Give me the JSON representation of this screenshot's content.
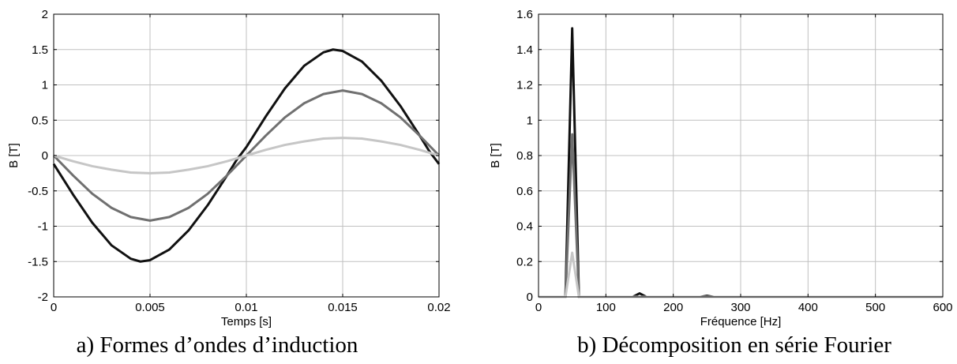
{
  "captions": {
    "a": "a) Formes d’ondes d’induction",
    "b": "b) Décomposition en série Fourier"
  },
  "colors": {
    "black": "#111111",
    "dark_gray": "#707070",
    "light_gray": "#c6c6c6",
    "grid": "#c0c0c0",
    "axis": "#000000"
  },
  "chart_data": [
    {
      "id": "a",
      "type": "line",
      "title": "",
      "xlabel": "Temps [s]",
      "ylabel": "B [T]",
      "xlim": [
        0,
        0.02
      ],
      "ylim": [
        -2,
        2
      ],
      "xticks": [
        0,
        0.005,
        0.01,
        0.015,
        0.02
      ],
      "xtick_labels": [
        "0",
        "0.005",
        "0.01",
        "0.015",
        "0.02"
      ],
      "yticks": [
        -2,
        -1.5,
        -1,
        -0.5,
        0,
        0.5,
        1,
        1.5,
        2
      ],
      "ytick_labels": [
        "-2",
        "-1.5",
        "-1",
        "-0.5",
        "0",
        "0.5",
        "1",
        "1.5",
        "2"
      ],
      "grid": true,
      "series": [
        {
          "color": "#111111",
          "x": [
            0,
            0.001,
            0.002,
            0.003,
            0.004,
            0.0045,
            0.005,
            0.006,
            0.007,
            0.008,
            0.009,
            0.0095,
            0.01,
            0.011,
            0.012,
            0.013,
            0.014,
            0.0145,
            0.015,
            0.016,
            0.017,
            0.018,
            0.019,
            0.0195,
            0.02
          ],
          "y": [
            -0.12,
            -0.55,
            -0.95,
            -1.27,
            -1.46,
            -1.5,
            -1.48,
            -1.33,
            -1.06,
            -0.7,
            -0.28,
            -0.06,
            0.12,
            0.55,
            0.95,
            1.27,
            1.46,
            1.5,
            1.48,
            1.33,
            1.06,
            0.7,
            0.28,
            0.06,
            -0.12
          ]
        },
        {
          "color": "#707070",
          "x": [
            0,
            0.001,
            0.002,
            0.003,
            0.004,
            0.005,
            0.006,
            0.007,
            0.008,
            0.009,
            0.01,
            0.011,
            0.012,
            0.013,
            0.014,
            0.015,
            0.016,
            0.017,
            0.018,
            0.019,
            0.02
          ],
          "y": [
            0,
            -0.28,
            -0.54,
            -0.74,
            -0.87,
            -0.92,
            -0.87,
            -0.74,
            -0.54,
            -0.28,
            0,
            0.28,
            0.54,
            0.74,
            0.87,
            0.92,
            0.87,
            0.74,
            0.54,
            0.28,
            0
          ]
        },
        {
          "color": "#c6c6c6",
          "x": [
            0,
            0.001,
            0.002,
            0.003,
            0.004,
            0.005,
            0.006,
            0.007,
            0.008,
            0.009,
            0.01,
            0.011,
            0.012,
            0.013,
            0.014,
            0.015,
            0.016,
            0.017,
            0.018,
            0.019,
            0.02
          ],
          "y": [
            0,
            -0.08,
            -0.15,
            -0.2,
            -0.24,
            -0.25,
            -0.24,
            -0.2,
            -0.15,
            -0.08,
            0,
            0.08,
            0.15,
            0.2,
            0.24,
            0.25,
            0.24,
            0.2,
            0.15,
            0.08,
            0
          ]
        }
      ]
    },
    {
      "id": "b",
      "type": "line",
      "title": "",
      "xlabel": "Fréquence [Hz]",
      "ylabel": "B [T]",
      "xlim": [
        0,
        600
      ],
      "ylim": [
        0,
        1.6
      ],
      "xticks": [
        0,
        100,
        200,
        300,
        400,
        500,
        600
      ],
      "xtick_labels": [
        "0",
        "100",
        "200",
        "300",
        "400",
        "500",
        "600"
      ],
      "yticks": [
        0,
        0.2,
        0.4,
        0.6,
        0.8,
        1.0,
        1.2,
        1.4,
        1.6
      ],
      "ytick_labels": [
        "0",
        "0.2",
        "0.4",
        "0.6",
        "0.8",
        "1",
        "1.2",
        "1.4",
        "1.6"
      ],
      "grid": true,
      "series": [
        {
          "color": "#111111",
          "x": [
            0,
            40,
            50,
            60,
            140,
            150,
            160,
            240,
            250,
            260,
            600
          ],
          "y": [
            0,
            0,
            1.52,
            0,
            0,
            0.02,
            0,
            0,
            0.006,
            0,
            0
          ]
        },
        {
          "color": "#707070",
          "x": [
            0,
            40,
            50,
            60,
            600
          ],
          "y": [
            0,
            0,
            0.92,
            0,
            0
          ]
        },
        {
          "color": "#c6c6c6",
          "x": [
            0,
            40,
            50,
            60,
            600
          ],
          "y": [
            0,
            0,
            0.25,
            0,
            0
          ]
        }
      ]
    }
  ]
}
